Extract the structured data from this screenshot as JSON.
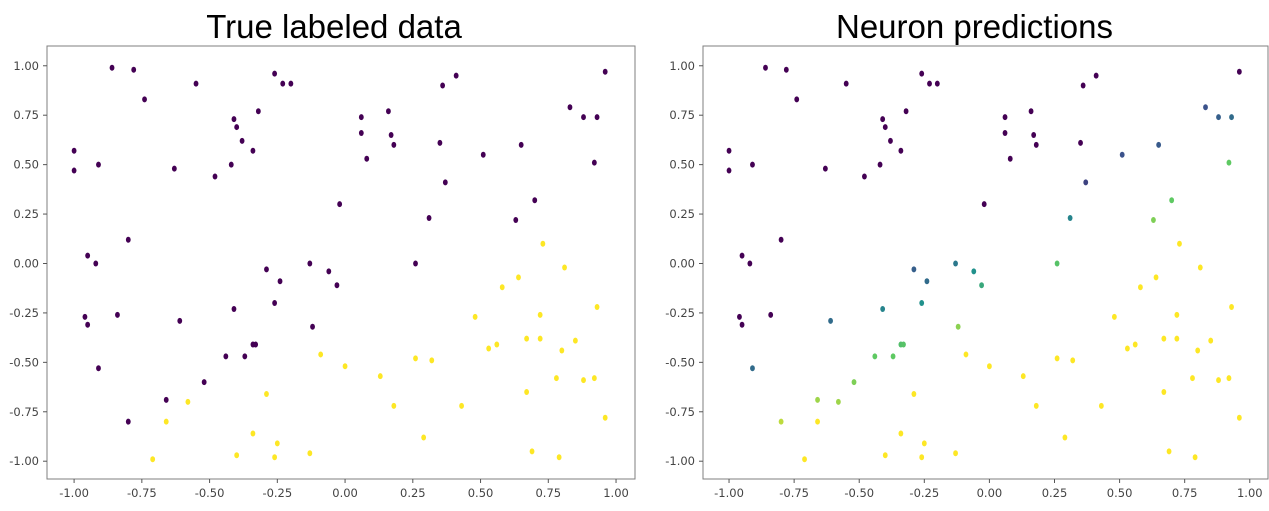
{
  "chart_data": [
    {
      "type": "scatter",
      "title": "True labeled data",
      "xlim": [
        -1.1,
        1.07
      ],
      "ylim": [
        -1.09,
        1.1
      ],
      "x_ticks": [
        "-1.00",
        "-0.75",
        "-0.50",
        "-0.25",
        "0.00",
        "0.25",
        "0.50",
        "0.75",
        "1.00"
      ],
      "y_ticks": [
        "1.00",
        "0.75",
        "0.50",
        "0.25",
        "0.00",
        "-0.25",
        "-0.50",
        "-0.75",
        "-1.00"
      ],
      "grid": false,
      "colormap_values": "0 = #440154 (dark purple), 1 = #fde725 (yellow)",
      "points": [
        [
          -0.86,
          0.99,
          0
        ],
        [
          -0.78,
          0.98,
          0
        ],
        [
          -0.74,
          0.83,
          0
        ],
        [
          -0.55,
          0.91,
          0
        ],
        [
          -0.26,
          0.96,
          0
        ],
        [
          -0.23,
          0.91,
          0
        ],
        [
          -0.2,
          0.91,
          0
        ],
        [
          0.36,
          0.9,
          0
        ],
        [
          0.41,
          0.95,
          0
        ],
        [
          0.96,
          0.97,
          0
        ],
        [
          -1.0,
          0.57,
          0
        ],
        [
          -1.0,
          0.47,
          0
        ],
        [
          -0.91,
          0.5,
          0
        ],
        [
          -0.63,
          0.48,
          0
        ],
        [
          -0.48,
          0.44,
          0
        ],
        [
          -0.42,
          0.5,
          0
        ],
        [
          -0.41,
          0.73,
          0
        ],
        [
          -0.4,
          0.69,
          0
        ],
        [
          -0.38,
          0.62,
          0
        ],
        [
          -0.34,
          0.57,
          0
        ],
        [
          -0.32,
          0.77,
          0
        ],
        [
          0.06,
          0.74,
          0
        ],
        [
          0.06,
          0.66,
          0
        ],
        [
          0.08,
          0.53,
          0
        ],
        [
          0.16,
          0.77,
          0
        ],
        [
          0.17,
          0.65,
          0
        ],
        [
          0.18,
          0.6,
          0
        ],
        [
          0.35,
          0.61,
          0
        ],
        [
          0.37,
          0.41,
          0
        ],
        [
          0.51,
          0.55,
          0
        ],
        [
          0.65,
          0.6,
          0
        ],
        [
          0.83,
          0.79,
          0
        ],
        [
          0.88,
          0.74,
          0
        ],
        [
          0.93,
          0.74,
          0
        ],
        [
          0.92,
          0.51,
          0
        ],
        [
          0.7,
          0.32,
          0
        ],
        [
          0.63,
          0.22,
          0
        ],
        [
          0.31,
          0.23,
          0
        ],
        [
          -0.02,
          0.3,
          0
        ],
        [
          -0.8,
          0.12,
          0
        ],
        [
          -0.95,
          0.04,
          0
        ],
        [
          -0.92,
          0.0,
          0
        ],
        [
          -0.29,
          -0.03,
          0
        ],
        [
          -0.24,
          -0.09,
          0
        ],
        [
          -0.13,
          0.0,
          0
        ],
        [
          -0.06,
          -0.04,
          0
        ],
        [
          -0.03,
          -0.11,
          0
        ],
        [
          0.26,
          0.0,
          0
        ],
        [
          -0.96,
          -0.27,
          0
        ],
        [
          -0.95,
          -0.31,
          0
        ],
        [
          -0.84,
          -0.26,
          0
        ],
        [
          -0.61,
          -0.29,
          0
        ],
        [
          -0.41,
          -0.23,
          0
        ],
        [
          -0.26,
          -0.2,
          0
        ],
        [
          -0.12,
          -0.32,
          0
        ],
        [
          -0.91,
          -0.53,
          0
        ],
        [
          -0.44,
          -0.47,
          0
        ],
        [
          -0.37,
          -0.47,
          0
        ],
        [
          -0.34,
          -0.41,
          0
        ],
        [
          -0.33,
          -0.41,
          0
        ],
        [
          -0.52,
          -0.6,
          0
        ],
        [
          -0.66,
          -0.69,
          0
        ],
        [
          -0.8,
          -0.8,
          0
        ],
        [
          -0.71,
          -0.99,
          1
        ],
        [
          -0.66,
          -0.8,
          1
        ],
        [
          -0.58,
          -0.7,
          1
        ],
        [
          -0.4,
          -0.97,
          1
        ],
        [
          -0.34,
          -0.86,
          1
        ],
        [
          -0.29,
          -0.66,
          1
        ],
        [
          -0.26,
          -0.98,
          1
        ],
        [
          -0.25,
          -0.91,
          1
        ],
        [
          -0.13,
          -0.96,
          1
        ],
        [
          -0.09,
          -0.46,
          1
        ],
        [
          0.0,
          -0.52,
          1
        ],
        [
          0.13,
          -0.57,
          1
        ],
        [
          0.18,
          -0.72,
          1
        ],
        [
          0.26,
          -0.48,
          1
        ],
        [
          0.29,
          -0.88,
          1
        ],
        [
          0.32,
          -0.49,
          1
        ],
        [
          0.43,
          -0.72,
          1
        ],
        [
          0.48,
          -0.27,
          1
        ],
        [
          0.53,
          -0.43,
          1
        ],
        [
          0.56,
          -0.41,
          1
        ],
        [
          0.58,
          -0.12,
          1
        ],
        [
          0.64,
          -0.07,
          1
        ],
        [
          0.67,
          -0.38,
          1
        ],
        [
          0.67,
          -0.65,
          1
        ],
        [
          0.69,
          -0.95,
          1
        ],
        [
          0.72,
          -0.26,
          1
        ],
        [
          0.72,
          -0.38,
          1
        ],
        [
          0.73,
          0.1,
          1
        ],
        [
          0.78,
          -0.58,
          1
        ],
        [
          0.79,
          -0.98,
          1
        ],
        [
          0.8,
          -0.44,
          1
        ],
        [
          0.81,
          -0.02,
          1
        ],
        [
          0.85,
          -0.39,
          1
        ],
        [
          0.88,
          -0.59,
          1
        ],
        [
          0.92,
          -0.58,
          1
        ],
        [
          0.93,
          -0.22,
          1
        ],
        [
          0.96,
          -0.78,
          1
        ]
      ]
    },
    {
      "type": "scatter",
      "title": "Neuron predictions",
      "xlim": [
        -1.1,
        1.07
      ],
      "ylim": [
        -1.09,
        1.1
      ],
      "x_ticks": [
        "-1.00",
        "-0.75",
        "-0.50",
        "-0.25",
        "0.00",
        "0.25",
        "0.50",
        "0.75",
        "1.00"
      ],
      "y_ticks": [
        "1.00",
        "0.75",
        "0.50",
        "0.25",
        "0.00",
        "-0.25",
        "-0.50",
        "-0.75",
        "-1.00"
      ],
      "grid": false,
      "colormap_values": "viridis 0–1",
      "points": [
        [
          -0.86,
          0.99,
          0
        ],
        [
          -0.78,
          0.98,
          0
        ],
        [
          -0.74,
          0.83,
          0
        ],
        [
          -0.55,
          0.91,
          0
        ],
        [
          -0.26,
          0.96,
          0
        ],
        [
          -0.23,
          0.91,
          0
        ],
        [
          -0.2,
          0.91,
          0
        ],
        [
          0.36,
          0.9,
          0
        ],
        [
          0.41,
          0.95,
          0
        ],
        [
          0.96,
          0.97,
          0
        ],
        [
          -1.0,
          0.57,
          0
        ],
        [
          -1.0,
          0.47,
          0
        ],
        [
          -0.91,
          0.5,
          0
        ],
        [
          -0.63,
          0.48,
          0
        ],
        [
          -0.48,
          0.44,
          0
        ],
        [
          -0.42,
          0.5,
          0
        ],
        [
          -0.41,
          0.73,
          0
        ],
        [
          -0.4,
          0.69,
          0
        ],
        [
          -0.38,
          0.62,
          0
        ],
        [
          -0.34,
          0.57,
          0
        ],
        [
          -0.32,
          0.77,
          0
        ],
        [
          0.06,
          0.74,
          0
        ],
        [
          0.06,
          0.66,
          0
        ],
        [
          0.08,
          0.53,
          0
        ],
        [
          0.16,
          0.77,
          0
        ],
        [
          0.17,
          0.65,
          0
        ],
        [
          0.18,
          0.6,
          0
        ],
        [
          0.35,
          0.61,
          0
        ],
        [
          0.37,
          0.41,
          0.2
        ],
        [
          0.51,
          0.55,
          0.25
        ],
        [
          0.65,
          0.6,
          0.28
        ],
        [
          0.83,
          0.79,
          0.25
        ],
        [
          0.88,
          0.74,
          0.3
        ],
        [
          0.93,
          0.74,
          0.35
        ],
        [
          0.92,
          0.51,
          0.75
        ],
        [
          0.7,
          0.32,
          0.75
        ],
        [
          0.63,
          0.22,
          0.8
        ],
        [
          0.31,
          0.23,
          0.45
        ],
        [
          -0.02,
          0.3,
          0
        ],
        [
          -0.8,
          0.12,
          0
        ],
        [
          -0.95,
          0.04,
          0
        ],
        [
          -0.92,
          0.0,
          0
        ],
        [
          -0.29,
          -0.03,
          0.3
        ],
        [
          -0.24,
          -0.09,
          0.35
        ],
        [
          -0.13,
          0.0,
          0.4
        ],
        [
          -0.06,
          -0.04,
          0.5
        ],
        [
          -0.03,
          -0.11,
          0.6
        ],
        [
          0.26,
          0.0,
          0.72
        ],
        [
          -0.96,
          -0.27,
          0
        ],
        [
          -0.95,
          -0.31,
          0
        ],
        [
          -0.84,
          -0.26,
          0
        ],
        [
          -0.61,
          -0.29,
          0.35
        ],
        [
          -0.41,
          -0.23,
          0.45
        ],
        [
          -0.26,
          -0.2,
          0.5
        ],
        [
          -0.12,
          -0.32,
          0.82
        ],
        [
          -0.91,
          -0.53,
          0.35
        ],
        [
          -0.44,
          -0.47,
          0.75
        ],
        [
          -0.37,
          -0.47,
          0.75
        ],
        [
          -0.34,
          -0.41,
          0.7
        ],
        [
          -0.33,
          -0.41,
          0.72
        ],
        [
          -0.52,
          -0.6,
          0.8
        ],
        [
          -0.66,
          -0.69,
          0.85
        ],
        [
          -0.8,
          -0.8,
          0.9
        ],
        [
          -0.71,
          -0.99,
          1
        ],
        [
          -0.66,
          -0.8,
          1
        ],
        [
          -0.58,
          -0.7,
          0.85
        ],
        [
          -0.4,
          -0.97,
          1
        ],
        [
          -0.34,
          -0.86,
          1
        ],
        [
          -0.29,
          -0.66,
          1
        ],
        [
          -0.26,
          -0.98,
          1
        ],
        [
          -0.25,
          -0.91,
          1
        ],
        [
          -0.13,
          -0.96,
          1
        ],
        [
          -0.09,
          -0.46,
          1
        ],
        [
          0.0,
          -0.52,
          1
        ],
        [
          0.13,
          -0.57,
          1
        ],
        [
          0.18,
          -0.72,
          1
        ],
        [
          0.26,
          -0.48,
          1
        ],
        [
          0.29,
          -0.88,
          1
        ],
        [
          0.32,
          -0.49,
          1
        ],
        [
          0.43,
          -0.72,
          1
        ],
        [
          0.48,
          -0.27,
          1
        ],
        [
          0.53,
          -0.43,
          1
        ],
        [
          0.56,
          -0.41,
          1
        ],
        [
          0.58,
          -0.12,
          1
        ],
        [
          0.64,
          -0.07,
          1
        ],
        [
          0.67,
          -0.38,
          1
        ],
        [
          0.67,
          -0.65,
          1
        ],
        [
          0.69,
          -0.95,
          1
        ],
        [
          0.72,
          -0.26,
          1
        ],
        [
          0.72,
          -0.38,
          1
        ],
        [
          0.73,
          0.1,
          1
        ],
        [
          0.78,
          -0.58,
          1
        ],
        [
          0.79,
          -0.98,
          1
        ],
        [
          0.8,
          -0.44,
          1
        ],
        [
          0.81,
          -0.02,
          1
        ],
        [
          0.85,
          -0.39,
          1
        ],
        [
          0.88,
          -0.59,
          1
        ],
        [
          0.92,
          -0.58,
          1
        ],
        [
          0.93,
          -0.22,
          1
        ],
        [
          0.96,
          -0.78,
          1
        ]
      ]
    }
  ]
}
